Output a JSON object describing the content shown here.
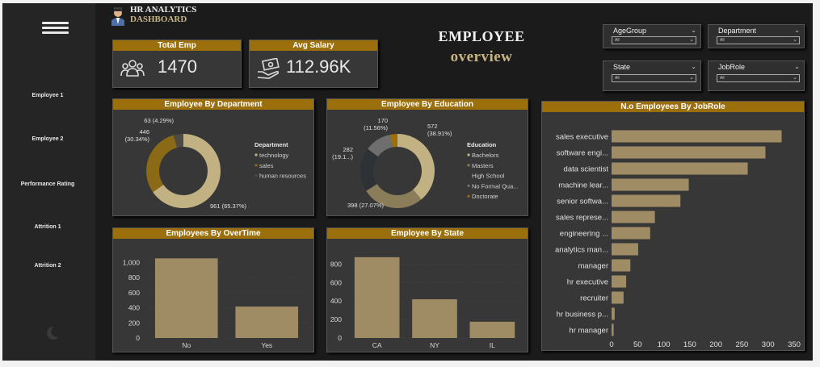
{
  "brand": {
    "line1": "HR ANALYTICS",
    "line2": "DASHBOARD"
  },
  "headline": {
    "line1": "EMPLOYEE",
    "line2": "overview"
  },
  "sidebar": {
    "items": [
      {
        "label": "Employee 1"
      },
      {
        "label": "Employee 2"
      },
      {
        "label": "Performance Rating"
      },
      {
        "label": "Attrition 1"
      },
      {
        "label": "Attrition 2"
      }
    ]
  },
  "kpis": {
    "total_emp": {
      "title": "Total Emp",
      "value": "1470"
    },
    "avg_salary": {
      "title": "Avg Salary",
      "value": "112.96K"
    }
  },
  "slicers": [
    {
      "label": "AgeGroup",
      "value": "All"
    },
    {
      "label": "Department",
      "value": "All"
    },
    {
      "label": "State",
      "value": "All"
    },
    {
      "label": "JobRole",
      "value": "All"
    }
  ],
  "colors": {
    "accent": "#9b6f0c",
    "bar": "#a08c64",
    "gold": "#c9b483"
  },
  "chart_data": [
    {
      "id": "dept",
      "type": "pie",
      "title": "Employee By Department",
      "legend_title": "Department",
      "slices": [
        {
          "name": "technology",
          "value": 961,
          "label": "961 (65.37%)",
          "color": "#c2b283"
        },
        {
          "name": "sales",
          "value": 446,
          "label": "446\n(30.34%)",
          "color": "#8a6a16"
        },
        {
          "name": "human resources",
          "value": 63,
          "label": "63 (4.29%)",
          "color": "#4e4b43"
        }
      ]
    },
    {
      "id": "edu",
      "type": "pie",
      "title": "Employee By Education",
      "legend_title": "Education",
      "slices": [
        {
          "name": "Bachelors",
          "value": 572,
          "label": "572\n(38.91%)",
          "color": "#c2b283"
        },
        {
          "name": "Masters",
          "value": 398,
          "label": "398 (27.07%)",
          "color": "#8b7c5a"
        },
        {
          "name": "High School",
          "value": 282,
          "label": "282\n(19.1...)",
          "color": "#2d3236"
        },
        {
          "name": "No Formal Qua...",
          "value": 170,
          "label": "170\n(11.56%)",
          "color": "#6e6e6e"
        },
        {
          "name": "Doctorate",
          "value": 48,
          "label": "",
          "color": "#9b6f0c"
        }
      ]
    },
    {
      "id": "overtime",
      "type": "bar",
      "title": "Employees By OverTime",
      "categories": [
        "No",
        "Yes"
      ],
      "values": [
        1054,
        416
      ],
      "ylim": [
        0,
        1100
      ],
      "yticks": [
        "0",
        "200",
        "400",
        "600",
        "800",
        "1,000"
      ]
    },
    {
      "id": "state",
      "type": "bar",
      "title": "Employee By State",
      "categories": [
        "CA",
        "NY",
        "IL"
      ],
      "values": [
        875,
        419,
        176
      ],
      "ylim": [
        0,
        900
      ],
      "yticks": [
        "0",
        "200",
        "400",
        "600",
        "800"
      ]
    },
    {
      "id": "jobrole",
      "type": "bar",
      "orientation": "horizontal",
      "title": "N.o Employees By JobRole",
      "categories": [
        "sales executive",
        "software engi...",
        "data scientist",
        "machine lear...",
        "senior softwa...",
        "sales represe...",
        "engineering ...",
        "analytics man...",
        "manager",
        "hr executive",
        "recruiter",
        "hr business p...",
        "hr manager"
      ],
      "values": [
        326,
        295,
        261,
        148,
        132,
        83,
        74,
        51,
        36,
        28,
        23,
        6,
        4
      ],
      "xlim": [
        0,
        350
      ],
      "xticks": [
        "0",
        "50",
        "100",
        "150",
        "200",
        "250",
        "300",
        "350"
      ]
    }
  ]
}
